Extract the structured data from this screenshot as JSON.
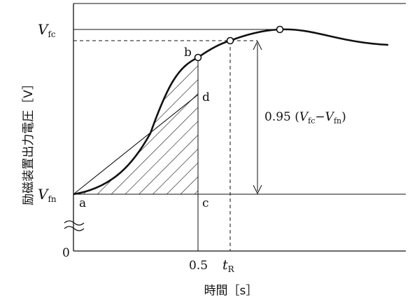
{
  "figure": {
    "y_axis_label": "励磁装置出力電圧［V］",
    "x_axis_label": "時間［s］",
    "labels": {
      "vfc_main": "V",
      "vfc_sub": "fc",
      "vfn_main": "V",
      "vfn_sub": "fn",
      "zero": "0",
      "t05": "0.5",
      "tr_main": "t",
      "tr_sub": "R",
      "point_a": "a",
      "point_b": "b",
      "point_c": "c",
      "point_d": "d"
    },
    "annotation": {
      "prefix": "0.95 (",
      "v1": "V",
      "v1_sub": "fc",
      "minus": "−",
      "v2": "V",
      "v2_sub": "fn",
      "suffix": ")"
    }
  },
  "colors": {
    "line": "#111111",
    "background": "#ffffff"
  }
}
